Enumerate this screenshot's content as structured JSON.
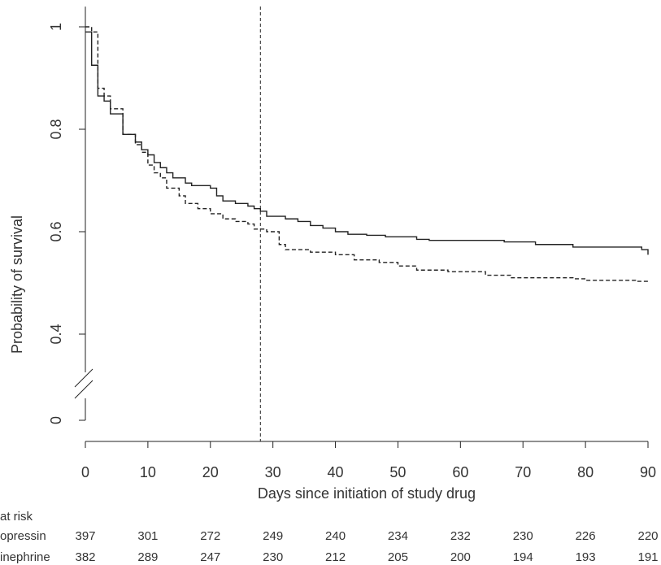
{
  "chart_data": {
    "type": "line",
    "x_label": "Days since initiation of study drug",
    "y_label": "Probability of survival",
    "xlim": [
      0,
      90
    ],
    "xticks": [
      0,
      10,
      20,
      30,
      40,
      50,
      60,
      70,
      80,
      90
    ],
    "ylim": [
      0,
      1.03
    ],
    "yticks": [
      0,
      0.4,
      0.6,
      0.8,
      1
    ],
    "axis_break": true,
    "vline": 28,
    "color": "#222",
    "series": [
      {
        "name": "opressin",
        "line_style": "solid",
        "x": [
          0,
          1,
          2,
          3,
          4,
          6,
          8,
          9,
          10,
          11,
          12,
          13,
          14,
          16,
          17,
          20,
          21,
          22,
          24,
          26,
          27,
          28,
          29,
          32,
          34,
          36,
          38,
          40,
          42,
          45,
          48,
          53,
          55,
          67,
          72,
          78,
          89,
          90
        ],
        "values": [
          0.99,
          0.925,
          0.865,
          0.855,
          0.83,
          0.79,
          0.775,
          0.76,
          0.75,
          0.735,
          0.725,
          0.715,
          0.705,
          0.695,
          0.69,
          0.685,
          0.67,
          0.66,
          0.655,
          0.65,
          0.645,
          0.64,
          0.63,
          0.625,
          0.62,
          0.612,
          0.607,
          0.6,
          0.595,
          0.593,
          0.59,
          0.585,
          0.583,
          0.58,
          0.575,
          0.57,
          0.565,
          0.555
        ],
        "at_risk": [
          397,
          301,
          272,
          249,
          240,
          234,
          232,
          230,
          226,
          220
        ]
      },
      {
        "name": "inephrine",
        "line_style": "dashed",
        "x": [
          0,
          1,
          2,
          3,
          4,
          6,
          8,
          9,
          10,
          11,
          12,
          13,
          15,
          16,
          18,
          20,
          22,
          24,
          26,
          27,
          29,
          31,
          32,
          36,
          40,
          43,
          47,
          50,
          53,
          58,
          64,
          68,
          78,
          80,
          88,
          90
        ],
        "values": [
          1,
          0.99,
          0.88,
          0.865,
          0.84,
          0.79,
          0.77,
          0.755,
          0.73,
          0.715,
          0.705,
          0.685,
          0.67,
          0.655,
          0.645,
          0.635,
          0.625,
          0.62,
          0.615,
          0.605,
          0.6,
          0.575,
          0.565,
          0.56,
          0.555,
          0.545,
          0.54,
          0.533,
          0.525,
          0.522,
          0.515,
          0.51,
          0.508,
          0.505,
          0.503,
          0.503
        ],
        "at_risk": [
          382,
          289,
          247,
          230,
          212,
          205,
          200,
          194,
          193,
          191
        ]
      }
    ],
    "risk_table_title": "at risk"
  }
}
